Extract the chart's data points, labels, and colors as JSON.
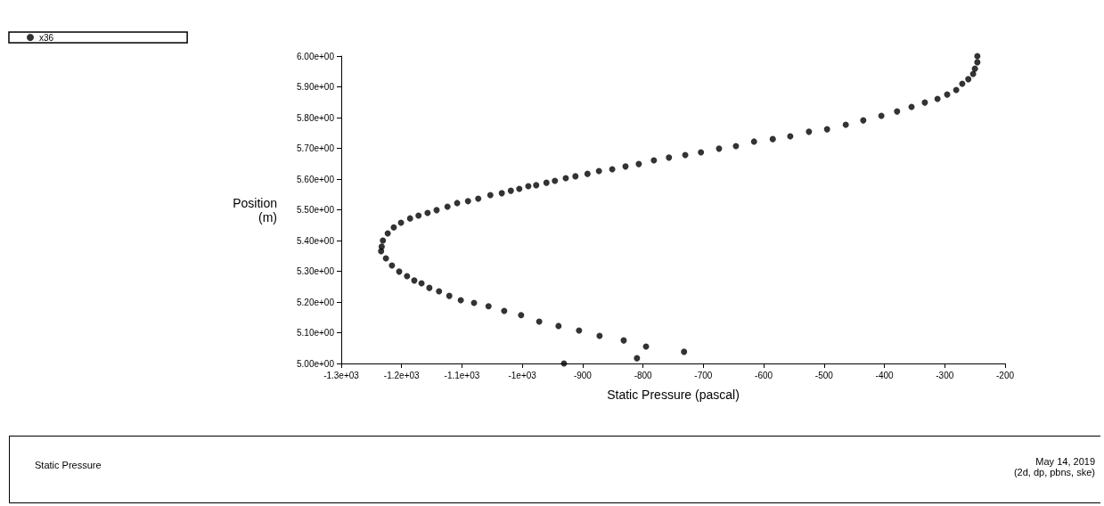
{
  "chart_data": {
    "type": "scatter",
    "xlabel": "Static Pressure (pascal)",
    "ylabel": "Position\n(m)",
    "xlim": [
      -1300,
      -200
    ],
    "ylim": [
      5,
      6
    ],
    "xticks": [
      {
        "value": -1300,
        "label": "-1.3e+03"
      },
      {
        "value": -1200,
        "label": "-1.2e+03"
      },
      {
        "value": -1100,
        "label": "-1.1e+03"
      },
      {
        "value": -1000,
        "label": "-1e+03"
      },
      -900,
      -800,
      -700,
      -600,
      -500,
      -400,
      -300,
      -200
    ],
    "yticks": [
      {
        "value": 5,
        "label": "5.00e+00"
      },
      {
        "value": 5.1,
        "label": "5.10e+00"
      },
      {
        "value": 5.2,
        "label": "5.20e+00"
      },
      {
        "value": 5.3,
        "label": "5.30e+00"
      },
      {
        "value": 5.4,
        "label": "5.40e+00"
      },
      {
        "value": 5.5,
        "label": "5.50e+00"
      },
      {
        "value": 5.6,
        "label": "5.60e+00"
      },
      {
        "value": 5.7,
        "label": "5.70e+00"
      },
      {
        "value": 5.8,
        "label": "5.80e+00"
      },
      {
        "value": 5.9,
        "label": "5.90e+00"
      },
      {
        "value": 6,
        "label": "6.00e+00"
      }
    ],
    "marker": "circle",
    "legend": "top left",
    "grid": false,
    "annotations": [
      "Static Pressure",
      "May 14, 2019",
      "(2d, dp, pbns, ske)"
    ],
    "series": [
      {
        "name": "x36",
        "color": "#000000",
        "x": [
          -931,
          -810,
          -732,
          -795,
          -832,
          -872,
          -906,
          -940,
          -972,
          -1002,
          -1030,
          -1056,
          -1080,
          -1102,
          -1121,
          -1138,
          -1154,
          -1167,
          -1179,
          -1191,
          -1204,
          -1216,
          -1226,
          -1234,
          -1233,
          -1231,
          -1223,
          -1213,
          -1201,
          -1186,
          -1172,
          -1157,
          -1142,
          -1124,
          -1108,
          -1090,
          -1073,
          -1053,
          -1034,
          -1019,
          -1005,
          -990,
          -977,
          -960,
          -946,
          -928,
          -912,
          -892,
          -873,
          -851,
          -829,
          -807,
          -782,
          -757,
          -730,
          -704,
          -674,
          -646,
          -616,
          -585,
          -556,
          -525,
          -495,
          -464,
          -435,
          -405,
          -379,
          -355,
          -333,
          -312,
          -296,
          -281,
          -271,
          -261,
          -253,
          -250,
          -246,
          -246
        ],
        "values": [
          5.0,
          5.017,
          5.038,
          5.055,
          5.075,
          5.09,
          5.107,
          5.122,
          5.136,
          5.157,
          5.171,
          5.186,
          5.197,
          5.206,
          5.22,
          5.235,
          5.246,
          5.261,
          5.27,
          5.284,
          5.299,
          5.319,
          5.342,
          5.365,
          5.38,
          5.4,
          5.423,
          5.443,
          5.458,
          5.472,
          5.481,
          5.49,
          5.499,
          5.51,
          5.522,
          5.528,
          5.536,
          5.548,
          5.554,
          5.562,
          5.568,
          5.577,
          5.58,
          5.588,
          5.594,
          5.603,
          5.609,
          5.617,
          5.626,
          5.632,
          5.641,
          5.649,
          5.661,
          5.67,
          5.678,
          5.687,
          5.699,
          5.707,
          5.722,
          5.73,
          5.739,
          5.754,
          5.762,
          5.777,
          5.791,
          5.806,
          5.82,
          5.835,
          5.849,
          5.861,
          5.875,
          5.89,
          5.91,
          5.925,
          5.942,
          5.959,
          5.98,
          6.0
        ]
      }
    ]
  }
}
